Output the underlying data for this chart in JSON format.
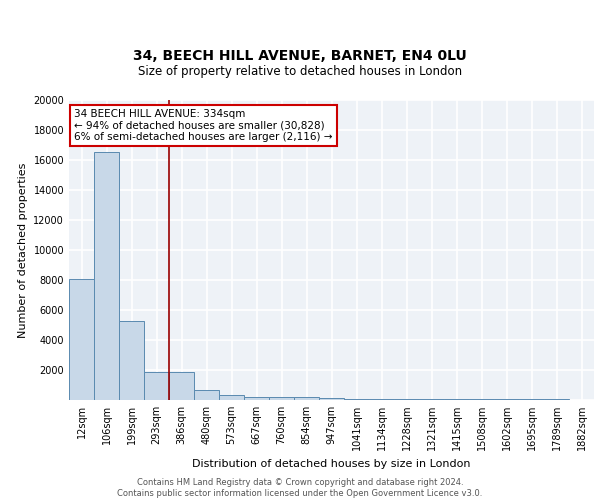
{
  "title_line1": "34, BEECH HILL AVENUE, BARNET, EN4 0LU",
  "title_line2": "Size of property relative to detached houses in London",
  "xlabel": "Distribution of detached houses by size in London",
  "ylabel": "Number of detached properties",
  "bar_color": "#c8d8e8",
  "bar_edge_color": "#5a8ab0",
  "categories": [
    "12sqm",
    "106sqm",
    "199sqm",
    "293sqm",
    "386sqm",
    "480sqm",
    "573sqm",
    "667sqm",
    "760sqm",
    "854sqm",
    "947sqm",
    "1041sqm",
    "1134sqm",
    "1228sqm",
    "1321sqm",
    "1415sqm",
    "1508sqm",
    "1602sqm",
    "1695sqm",
    "1789sqm",
    "1882sqm"
  ],
  "values": [
    8100,
    16500,
    5300,
    1850,
    1850,
    700,
    320,
    230,
    200,
    175,
    150,
    100,
    70,
    60,
    55,
    50,
    45,
    40,
    35,
    35,
    30
  ],
  "ylim": [
    0,
    20000
  ],
  "yticks": [
    0,
    2000,
    4000,
    6000,
    8000,
    10000,
    12000,
    14000,
    16000,
    18000,
    20000
  ],
  "red_line_x": 3.5,
  "annotation_text": "34 BEECH HILL AVENUE: 334sqm\n← 94% of detached houses are smaller (30,828)\n6% of semi-detached houses are larger (2,116) →",
  "annotation_box_color": "white",
  "annotation_box_edge_color": "#cc0000",
  "footer_text": "Contains HM Land Registry data © Crown copyright and database right 2024.\nContains public sector information licensed under the Open Government Licence v3.0.",
  "background_color": "#eef2f7",
  "grid_color": "white",
  "title_fontsize": 10,
  "subtitle_fontsize": 8.5,
  "ylabel_fontsize": 8,
  "xlabel_fontsize": 8,
  "tick_fontsize": 7,
  "footer_fontsize": 6,
  "annotation_fontsize": 7.5
}
